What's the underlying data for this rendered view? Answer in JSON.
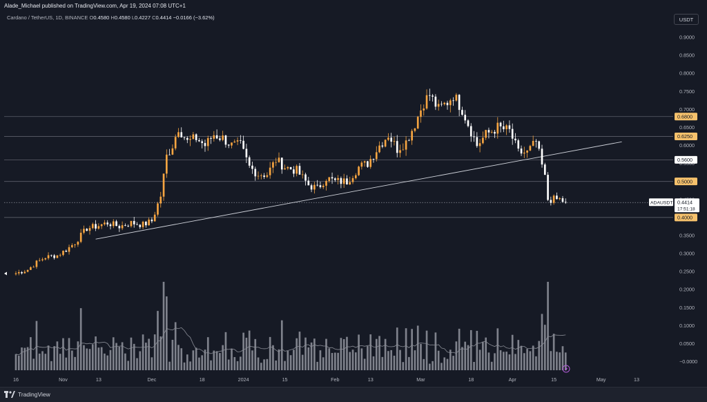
{
  "header": {
    "publisher": "Alade_Michael published on TradingView.com, Apr 19, 2024 07:08 UTC+1",
    "currency_button": "USDT"
  },
  "legend": {
    "symbol": "Cardano / TetherUS, 1D, BINANCE",
    "open_label": "O",
    "open": "0.4580",
    "high_label": "H",
    "high": "0.4580",
    "low_label": "L",
    "low": "0.4227",
    "close_label": "C",
    "close": "0.4414",
    "change": "−0.0166 (−3.62%)"
  },
  "footer": {
    "brand": "TradingView"
  },
  "colors": {
    "background": "#161a25",
    "up": "#f7a541",
    "down": "#ffffff",
    "level_line": "#5d606b",
    "trendline": "#d1d4dc",
    "volume": "#a3a6af",
    "grid_text": "#b2b5be",
    "orange_label": "#f5c16c",
    "white_label": "#ffffff"
  },
  "chart_data": {
    "type": "candlestick",
    "symbol": "ADAUSDT",
    "interval": "1D",
    "exchange": "BINANCE",
    "y_axis": {
      "ticks": [
        "0.9000",
        "0.8500",
        "0.8000",
        "0.7500",
        "0.7000",
        "0.6500",
        "0.6000",
        "0.5500",
        "0.4500",
        "0.3500",
        "0.3000",
        "0.2500",
        "0.2000",
        "0.1500",
        "0.1000",
        "0.0500",
        "−0.0000"
      ],
      "range": [
        -0.02,
        0.92
      ],
      "log": false
    },
    "x_axis": {
      "ticks": [
        "16",
        "Nov",
        "13",
        "Dec",
        "18",
        "2024",
        "15",
        "Feb",
        "13",
        "Mar",
        "18",
        "Apr",
        "15",
        "May",
        "13"
      ],
      "range": [
        "2023-10-16",
        "2024-05-13"
      ]
    },
    "horizontal_levels": [
      {
        "value": 0.68,
        "label": "0.6800",
        "style": "orange"
      },
      {
        "value": 0.625,
        "label": "0.6250",
        "style": "orange"
      },
      {
        "value": 0.56,
        "label": "0.5600",
        "style": "white"
      },
      {
        "value": 0.5,
        "label": "0.5000",
        "style": "orange"
      },
      {
        "value": 0.4,
        "label": "0.4000",
        "style": "orange"
      }
    ],
    "trendline": {
      "start": [
        "2023-11-12",
        0.34
      ],
      "end": [
        "2024-05-08",
        0.61
      ]
    },
    "current_price": {
      "symbol": "ADAUSDT",
      "price": "0.4414",
      "countdown": "17:51:18"
    },
    "ohlc_anchors": [
      [
        "2023-10-16",
        0.245
      ],
      [
        "2023-10-20",
        0.255
      ],
      [
        "2023-10-23",
        0.275
      ],
      [
        "2023-10-26",
        0.29
      ],
      [
        "2023-10-30",
        0.295
      ],
      [
        "2023-11-02",
        0.31
      ],
      [
        "2023-11-05",
        0.33
      ],
      [
        "2023-11-09",
        0.37
      ],
      [
        "2023-11-12",
        0.375
      ],
      [
        "2023-11-16",
        0.385
      ],
      [
        "2023-11-20",
        0.375
      ],
      [
        "2023-11-24",
        0.385
      ],
      [
        "2023-11-28",
        0.38
      ],
      [
        "2023-12-01",
        0.39
      ],
      [
        "2023-12-04",
        0.46
      ],
      [
        "2023-12-06",
        0.57
      ],
      [
        "2023-12-08",
        0.6
      ],
      [
        "2023-12-10",
        0.65
      ],
      [
        "2023-12-13",
        0.61
      ],
      [
        "2023-12-16",
        0.62
      ],
      [
        "2023-12-19",
        0.6
      ],
      [
        "2023-12-22",
        0.63
      ],
      [
        "2023-12-25",
        0.62
      ],
      [
        "2023-12-28",
        0.6
      ],
      [
        "2023-12-31",
        0.6
      ],
      [
        "2024-01-03",
        0.54
      ],
      [
        "2024-01-06",
        0.52
      ],
      [
        "2024-01-09",
        0.52
      ],
      [
        "2024-01-12",
        0.56
      ],
      [
        "2024-01-15",
        0.54
      ],
      [
        "2024-01-19",
        0.53
      ],
      [
        "2024-01-23",
        0.49
      ],
      [
        "2024-01-26",
        0.48
      ],
      [
        "2024-01-29",
        0.51
      ],
      [
        "2024-02-01",
        0.5
      ],
      [
        "2024-02-05",
        0.5
      ],
      [
        "2024-02-09",
        0.54
      ],
      [
        "2024-02-12",
        0.55
      ],
      [
        "2024-02-16",
        0.6
      ],
      [
        "2024-02-19",
        0.63
      ],
      [
        "2024-02-22",
        0.59
      ],
      [
        "2024-02-25",
        0.61
      ],
      [
        "2024-02-28",
        0.66
      ],
      [
        "2024-03-02",
        0.72
      ],
      [
        "2024-03-04",
        0.74
      ],
      [
        "2024-03-07",
        0.7
      ],
      [
        "2024-03-10",
        0.72
      ],
      [
        "2024-03-12",
        0.74
      ],
      [
        "2024-03-15",
        0.7
      ],
      [
        "2024-03-17",
        0.66
      ],
      [
        "2024-03-20",
        0.6
      ],
      [
        "2024-03-23",
        0.63
      ],
      [
        "2024-03-27",
        0.65
      ],
      [
        "2024-03-31",
        0.64
      ],
      [
        "2024-04-03",
        0.58
      ],
      [
        "2024-04-06",
        0.58
      ],
      [
        "2024-04-09",
        0.61
      ],
      [
        "2024-04-12",
        0.51
      ],
      [
        "2024-04-13",
        0.45
      ],
      [
        "2024-04-15",
        0.45
      ],
      [
        "2024-04-17",
        0.45
      ],
      [
        "2024-04-19",
        0.4414
      ]
    ],
    "volume_relative": "bars drawn on lower pane, tallest near Dec 6, Mar 1-5 and Apr 13"
  }
}
